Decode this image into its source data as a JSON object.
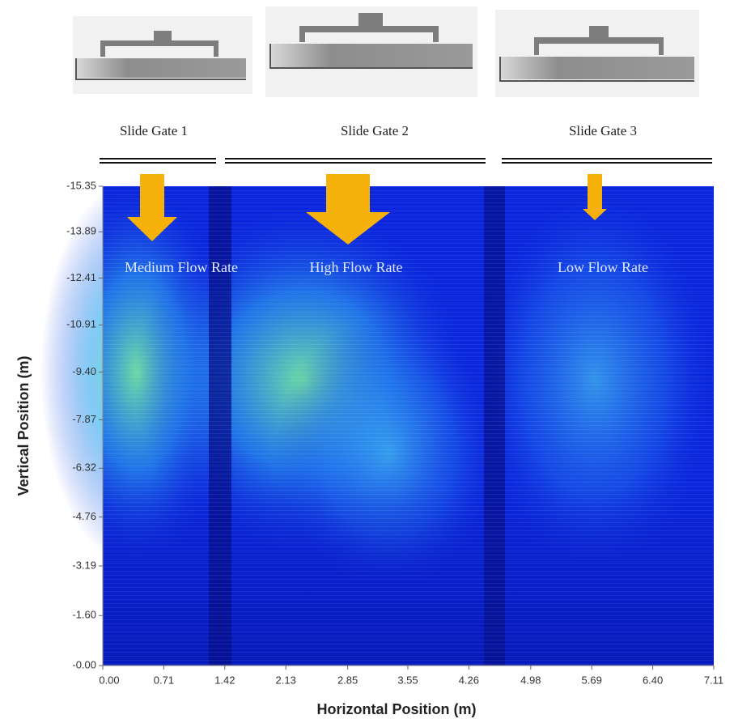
{
  "chart_data": {
    "type": "heatmap",
    "x_label": "Horizontal Position (m)",
    "y_label": "Vertical Position (m)",
    "xlim": [
      0,
      7.11
    ],
    "ylim": [
      0,
      -15.35
    ],
    "xticks": [
      {
        "value": 0,
        "label": "0.00"
      },
      0.71,
      1.42,
      2.13,
      2.85,
      3.55,
      4.26,
      4.98,
      5.69,
      {
        "value": 6.4,
        "label": "6.40"
      },
      7.11
    ],
    "yticks": [
      -15.35,
      -13.89,
      -12.41,
      -10.91,
      {
        "value": -9.4,
        "label": "-9.40"
      },
      -7.87,
      -6.32,
      -4.76,
      -3.19,
      {
        "value": -1.6,
        "label": "-1.60"
      },
      {
        "value": 0,
        "label": "-0.00"
      }
    ],
    "gates": [
      {
        "label": "Slide Gate 1",
        "flow": "Medium Flow Rate"
      },
      {
        "label": "Slide Gate 2",
        "flow": "High Flow Rate"
      },
      {
        "label": "Slide Gate 3",
        "flow": "Low Flow Rate"
      }
    ]
  }
}
